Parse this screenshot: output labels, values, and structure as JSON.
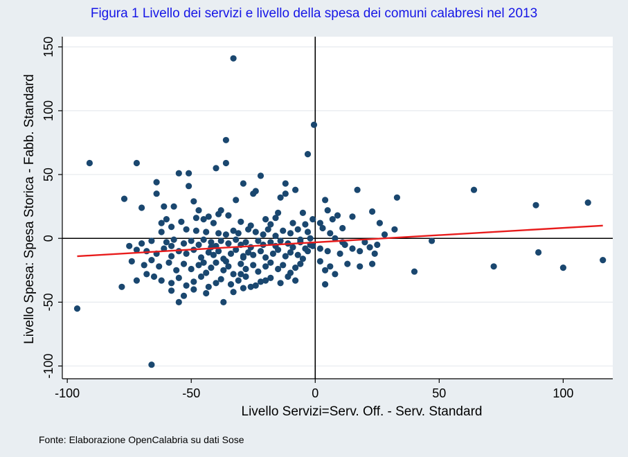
{
  "chart_data": {
    "type": "scatter",
    "title": "Figura 1 Livello dei servizi e livello della spesa dei comuni calabresi nel 2013",
    "xlabel": "Livello Servizi=Serv. Off. - Serv. Standard",
    "ylabel": "Livello Spesa: Spesa Storica -  Fabb. Standard",
    "xlim": [
      -102,
      120
    ],
    "ylim": [
      -110,
      158
    ],
    "x_ticks": [
      -100,
      -50,
      0,
      50,
      100
    ],
    "x_tick_labels": [
      "-100",
      "-50",
      "0",
      "50",
      "100"
    ],
    "y_ticks": [
      -100,
      -50,
      0,
      50,
      100,
      150
    ],
    "y_tick_labels": [
      "-100",
      "-50",
      "0",
      "50",
      "100",
      "150"
    ],
    "grid": true,
    "colors": {
      "points": "#1a476f",
      "fit_line": "#e81c1c",
      "background": "#e9eef2",
      "plot_area": "#ffffff",
      "title": "#1515e6"
    },
    "series": [
      {
        "type": "scatter",
        "points": [
          [
            -96,
            -55
          ],
          [
            -91,
            59
          ],
          [
            -77,
            31
          ],
          [
            -72,
            59
          ],
          [
            -66,
            -99
          ],
          [
            -33,
            141
          ],
          [
            -0.5,
            89
          ],
          [
            -3,
            66
          ],
          [
            -36,
            77
          ],
          [
            -36,
            59
          ],
          [
            -40,
            55
          ],
          [
            -55,
            51
          ],
          [
            -51,
            51
          ],
          [
            -22,
            49
          ],
          [
            -29,
            43
          ],
          [
            -64,
            44
          ],
          [
            -12,
            43
          ],
          [
            -8,
            38
          ],
          [
            -12,
            35
          ],
          [
            -24,
            37
          ],
          [
            -64,
            35
          ],
          [
            -70,
            24
          ],
          [
            -49,
            29
          ],
          [
            -32,
            30
          ],
          [
            -57,
            25
          ],
          [
            -61,
            25
          ],
          [
            -47,
            22
          ],
          [
            -38,
            22
          ],
          [
            -35,
            18
          ],
          [
            -15,
            20
          ],
          [
            -5,
            20
          ],
          [
            -51,
            41
          ],
          [
            -25,
            35
          ],
          [
            -14,
            32
          ],
          [
            -54,
            13
          ],
          [
            -60,
            15
          ],
          [
            -45,
            15
          ],
          [
            -43,
            17
          ],
          [
            -41,
            12
          ],
          [
            -30,
            13
          ],
          [
            -20,
            15
          ],
          [
            -18,
            11
          ],
          [
            -16,
            16
          ],
          [
            -9,
            12
          ],
          [
            -4,
            11
          ],
          [
            -1,
            15
          ],
          [
            2,
            12
          ],
          [
            -62,
            12
          ],
          [
            -58,
            9
          ],
          [
            -52,
            7
          ],
          [
            -48,
            6
          ],
          [
            -44,
            5
          ],
          [
            -39,
            4
          ],
          [
            -36,
            3
          ],
          [
            -33,
            6
          ],
          [
            -31,
            4
          ],
          [
            -27,
            7
          ],
          [
            -24,
            5
          ],
          [
            -21,
            3
          ],
          [
            -19,
            7
          ],
          [
            -13,
            6
          ],
          [
            -10,
            4
          ],
          [
            -7,
            7
          ],
          [
            -3,
            5
          ],
          [
            -66,
            -2
          ],
          [
            -60,
            -3
          ],
          [
            -57,
            -1
          ],
          [
            -53,
            -4
          ],
          [
            -50,
            -2
          ],
          [
            -47,
            -5
          ],
          [
            -45,
            -1
          ],
          [
            -42,
            -3
          ],
          [
            -40,
            -6
          ],
          [
            -38,
            -2
          ],
          [
            -35,
            -4
          ],
          [
            -32,
            -1
          ],
          [
            -30,
            -5
          ],
          [
            -28,
            -3
          ],
          [
            -26,
            -7
          ],
          [
            -23,
            -2
          ],
          [
            -21,
            -5
          ],
          [
            -18,
            -3
          ],
          [
            -16,
            -6
          ],
          [
            -14,
            -2
          ],
          [
            -11,
            -4
          ],
          [
            -9,
            -7
          ],
          [
            -6,
            -3
          ],
          [
            -4,
            -8
          ],
          [
            -2,
            -5
          ],
          [
            -68,
            -10
          ],
          [
            -64,
            -12
          ],
          [
            -61,
            -8
          ],
          [
            -58,
            -14
          ],
          [
            -55,
            -10
          ],
          [
            -52,
            -12
          ],
          [
            -49,
            -9
          ],
          [
            -46,
            -15
          ],
          [
            -43,
            -11
          ],
          [
            -41,
            -13
          ],
          [
            -39,
            -10
          ],
          [
            -37,
            -16
          ],
          [
            -34,
            -12
          ],
          [
            -32,
            -9
          ],
          [
            -29,
            -14
          ],
          [
            -27,
            -11
          ],
          [
            -25,
            -13
          ],
          [
            -22,
            -10
          ],
          [
            -20,
            -15
          ],
          [
            -17,
            -12
          ],
          [
            -15,
            -9
          ],
          [
            -12,
            -14
          ],
          [
            -10,
            -11
          ],
          [
            -7,
            -13
          ],
          [
            -5,
            -16
          ],
          [
            -3,
            -10
          ],
          [
            -75,
            -6
          ],
          [
            -72,
            -9
          ],
          [
            -74,
            -18
          ],
          [
            -69,
            -21
          ],
          [
            -66,
            -17
          ],
          [
            -63,
            -22
          ],
          [
            -59,
            -19
          ],
          [
            -56,
            -25
          ],
          [
            -53,
            -20
          ],
          [
            -50,
            -24
          ],
          [
            -47,
            -21
          ],
          [
            -44,
            -27
          ],
          [
            -42,
            -23
          ],
          [
            -40,
            -19
          ],
          [
            -37,
            -25
          ],
          [
            -35,
            -22
          ],
          [
            -33,
            -28
          ],
          [
            -30,
            -20
          ],
          [
            -28,
            -24
          ],
          [
            -25,
            -21
          ],
          [
            -23,
            -26
          ],
          [
            -20,
            -22
          ],
          [
            -18,
            -19
          ],
          [
            -15,
            -24
          ],
          [
            -13,
            -21
          ],
          [
            -10,
            -27
          ],
          [
            -8,
            -23
          ],
          [
            -6,
            -20
          ],
          [
            -65,
            -30
          ],
          [
            -62,
            -33
          ],
          [
            -58,
            -35
          ],
          [
            -55,
            -31
          ],
          [
            -52,
            -37
          ],
          [
            -49,
            -34
          ],
          [
            -46,
            -30
          ],
          [
            -43,
            -38
          ],
          [
            -40,
            -35
          ],
          [
            -38,
            -32
          ],
          [
            -34,
            -36
          ],
          [
            -31,
            -33
          ],
          [
            -28,
            -30
          ],
          [
            -26,
            -38
          ],
          [
            -22,
            -34
          ],
          [
            -18,
            -31
          ],
          [
            -14,
            -35
          ],
          [
            -11,
            -30
          ],
          [
            -8,
            -33
          ],
          [
            -78,
            -38
          ],
          [
            -72,
            -33
          ],
          [
            -68,
            -28
          ],
          [
            -58,
            -41
          ],
          [
            -53,
            -45
          ],
          [
            -49,
            -40
          ],
          [
            -44,
            -43
          ],
          [
            -37,
            -50
          ],
          [
            -33,
            -42
          ],
          [
            -29,
            -39
          ],
          [
            -24,
            -37
          ],
          [
            -55,
            -50
          ],
          [
            -48,
            16
          ],
          [
            -42,
            -7
          ],
          [
            -36,
            -18
          ],
          [
            -26,
            10
          ],
          [
            -16,
            2
          ],
          [
            -6,
            -1
          ],
          [
            -1,
            -6
          ],
          [
            -62,
            5
          ],
          [
            -70,
            -4
          ],
          [
            -45,
            -19
          ],
          [
            -30,
            -28
          ],
          [
            -20,
            -33
          ],
          [
            -58,
            -6
          ],
          [
            -39,
            19
          ],
          [
            -29,
            -15
          ],
          [
            4,
            30
          ],
          [
            5,
            22
          ],
          [
            7,
            15
          ],
          [
            9,
            18
          ],
          [
            3,
            8
          ],
          [
            6,
            4
          ],
          [
            8,
            0
          ],
          [
            11,
            -3
          ],
          [
            2,
            -8
          ],
          [
            5,
            -10
          ],
          [
            10,
            -12
          ],
          [
            12,
            -5
          ],
          [
            15,
            -8
          ],
          [
            18,
            -10
          ],
          [
            20,
            -3
          ],
          [
            22,
            -7
          ],
          [
            25,
            -5
          ],
          [
            24,
            -12
          ],
          [
            13,
            -20
          ],
          [
            18,
            -22
          ],
          [
            23,
            -20
          ],
          [
            4,
            -25
          ],
          [
            8,
            -28
          ],
          [
            4,
            -36
          ],
          [
            6,
            -22
          ],
          [
            17,
            38
          ],
          [
            23,
            21
          ],
          [
            26,
            12
          ],
          [
            28,
            3
          ],
          [
            32,
            7
          ],
          [
            33,
            32
          ],
          [
            40,
            -26
          ],
          [
            47,
            -2
          ],
          [
            64,
            38
          ],
          [
            72,
            -22
          ],
          [
            89,
            26
          ],
          [
            90,
            -11
          ],
          [
            100,
            -23
          ],
          [
            110,
            28
          ],
          [
            116,
            -17
          ],
          [
            2,
            -18
          ],
          [
            -2,
            0
          ],
          [
            15,
            17
          ],
          [
            11,
            8
          ]
        ]
      },
      {
        "type": "line",
        "points": [
          [
            -96,
            -14
          ],
          [
            116,
            10
          ]
        ]
      }
    ],
    "source": "Fonte: Elaborazione OpenCalabria su dati Sose"
  }
}
